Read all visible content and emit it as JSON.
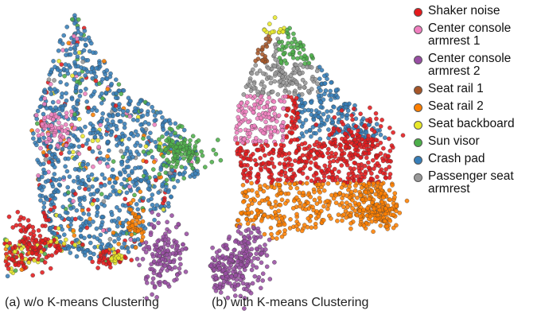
{
  "chart_data": [
    {
      "type": "scatter",
      "panel": "a",
      "caption": "(a) w/o K-means Clustering",
      "series": [
        "Shaker noise",
        "Center console armrest 1",
        "Center console armrest 2",
        "Seat rail 1",
        "Seat rail 2",
        "Seat backboard",
        "Sun visor",
        "Crash pad",
        "Passenger seat armrest"
      ],
      "grid": false
    },
    {
      "type": "scatter",
      "panel": "b",
      "caption": "(b) with K-means Clustering",
      "grid": false
    }
  ],
  "legend": {
    "placement": "right",
    "items": [
      {
        "label": "Shaker noise",
        "color": "#e41a1c"
      },
      {
        "label": "Center console armrest 1",
        "color": "#f07fbf"
      },
      {
        "label": "Center console armrest 2",
        "color": "#984ea3"
      },
      {
        "label": "Seat rail 1",
        "color": "#a65628"
      },
      {
        "label": "Seat rail 2",
        "color": "#ff7f00"
      },
      {
        "label": "Seat backboard",
        "color": "#e8e82a"
      },
      {
        "label": "Sun visor",
        "color": "#4daf4a"
      },
      {
        "label": "Crash pad",
        "color": "#377eb8"
      },
      {
        "label": "Passenger seat armrest",
        "color": "#999999"
      }
    ]
  }
}
